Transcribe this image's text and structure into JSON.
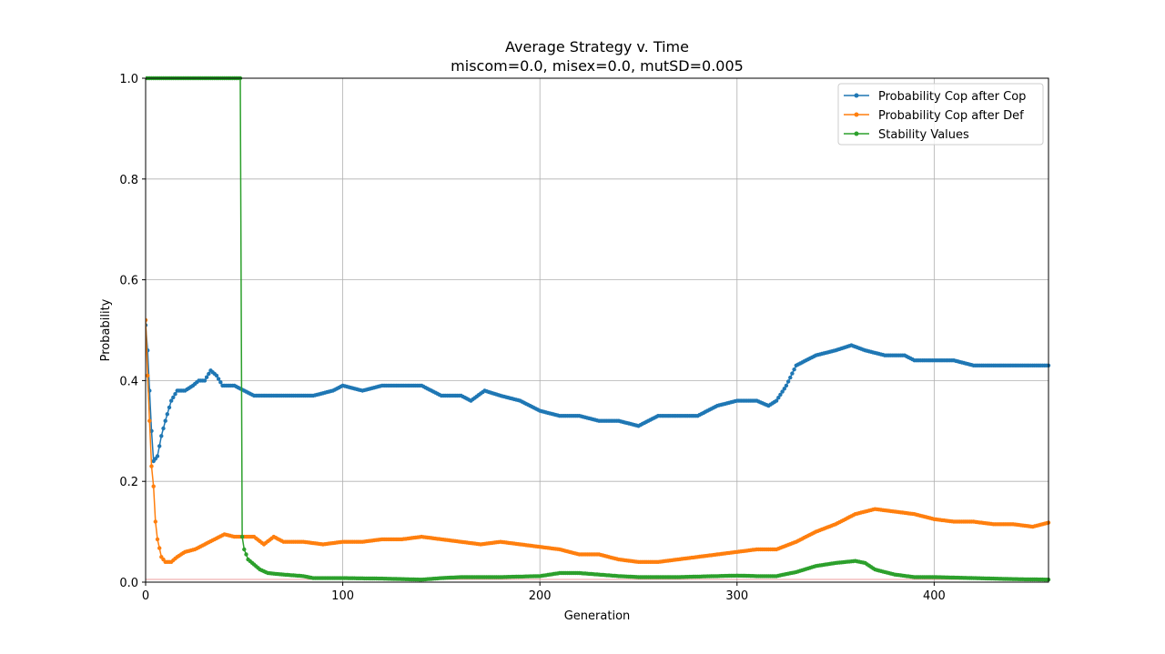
{
  "chart_data": {
    "type": "line",
    "title": "Average Strategy v. Time",
    "subtitle": "miscom=0.0, misex=0.0, mutSD=0.005",
    "xlabel": "Generation",
    "ylabel": "Probability",
    "xlim": [
      0,
      458
    ],
    "ylim": [
      0.0,
      1.0
    ],
    "xticks": [
      0,
      100,
      200,
      300,
      400
    ],
    "yticks": [
      0.0,
      0.2,
      0.4,
      0.6,
      0.8,
      1.0
    ],
    "grid": true,
    "legend_position": "top-right",
    "series": [
      {
        "name": "Probability Cop after Cop",
        "color": "#1f77b4",
        "anchors": [
          [
            0,
            0.51
          ],
          [
            1,
            0.46
          ],
          [
            3,
            0.3
          ],
          [
            4,
            0.24
          ],
          [
            6,
            0.25
          ],
          [
            8,
            0.29
          ],
          [
            10,
            0.32
          ],
          [
            13,
            0.36
          ],
          [
            16,
            0.38
          ],
          [
            20,
            0.38
          ],
          [
            24,
            0.39
          ],
          [
            27,
            0.4
          ],
          [
            30,
            0.4
          ],
          [
            33,
            0.42
          ],
          [
            36,
            0.41
          ],
          [
            39,
            0.39
          ],
          [
            45,
            0.39
          ],
          [
            50,
            0.38
          ],
          [
            55,
            0.37
          ],
          [
            65,
            0.37
          ],
          [
            75,
            0.37
          ],
          [
            85,
            0.37
          ],
          [
            95,
            0.38
          ],
          [
            100,
            0.39
          ],
          [
            110,
            0.38
          ],
          [
            120,
            0.39
          ],
          [
            130,
            0.39
          ],
          [
            140,
            0.39
          ],
          [
            150,
            0.37
          ],
          [
            160,
            0.37
          ],
          [
            165,
            0.36
          ],
          [
            172,
            0.38
          ],
          [
            180,
            0.37
          ],
          [
            190,
            0.36
          ],
          [
            200,
            0.34
          ],
          [
            210,
            0.33
          ],
          [
            220,
            0.33
          ],
          [
            230,
            0.32
          ],
          [
            240,
            0.32
          ],
          [
            250,
            0.31
          ],
          [
            255,
            0.32
          ],
          [
            260,
            0.33
          ],
          [
            270,
            0.33
          ],
          [
            280,
            0.33
          ],
          [
            290,
            0.35
          ],
          [
            300,
            0.36
          ],
          [
            310,
            0.36
          ],
          [
            316,
            0.35
          ],
          [
            320,
            0.36
          ],
          [
            325,
            0.39
          ],
          [
            330,
            0.43
          ],
          [
            340,
            0.45
          ],
          [
            350,
            0.46
          ],
          [
            358,
            0.47
          ],
          [
            365,
            0.46
          ],
          [
            375,
            0.45
          ],
          [
            385,
            0.45
          ],
          [
            390,
            0.44
          ],
          [
            400,
            0.44
          ],
          [
            410,
            0.44
          ],
          [
            420,
            0.43
          ],
          [
            430,
            0.43
          ],
          [
            440,
            0.43
          ],
          [
            450,
            0.43
          ],
          [
            458,
            0.43
          ]
        ]
      },
      {
        "name": "Probability Cop after Def",
        "color": "#ff7f0e",
        "anchors": [
          [
            0,
            0.52
          ],
          [
            1,
            0.41
          ],
          [
            2,
            0.32
          ],
          [
            3,
            0.23
          ],
          [
            4,
            0.19
          ],
          [
            5,
            0.12
          ],
          [
            6,
            0.085
          ],
          [
            8,
            0.05
          ],
          [
            10,
            0.04
          ],
          [
            13,
            0.04
          ],
          [
            16,
            0.05
          ],
          [
            20,
            0.06
          ],
          [
            25,
            0.065
          ],
          [
            30,
            0.075
          ],
          [
            35,
            0.085
          ],
          [
            40,
            0.095
          ],
          [
            45,
            0.09
          ],
          [
            50,
            0.09
          ],
          [
            55,
            0.09
          ],
          [
            60,
            0.075
          ],
          [
            65,
            0.09
          ],
          [
            70,
            0.08
          ],
          [
            80,
            0.08
          ],
          [
            90,
            0.075
          ],
          [
            100,
            0.08
          ],
          [
            110,
            0.08
          ],
          [
            120,
            0.085
          ],
          [
            130,
            0.085
          ],
          [
            140,
            0.09
          ],
          [
            150,
            0.085
          ],
          [
            160,
            0.08
          ],
          [
            170,
            0.075
          ],
          [
            180,
            0.08
          ],
          [
            190,
            0.075
          ],
          [
            200,
            0.07
          ],
          [
            210,
            0.065
          ],
          [
            220,
            0.055
          ],
          [
            230,
            0.055
          ],
          [
            240,
            0.045
          ],
          [
            250,
            0.04
          ],
          [
            260,
            0.04
          ],
          [
            270,
            0.045
          ],
          [
            280,
            0.05
          ],
          [
            290,
            0.055
          ],
          [
            300,
            0.06
          ],
          [
            310,
            0.065
          ],
          [
            320,
            0.065
          ],
          [
            330,
            0.08
          ],
          [
            340,
            0.1
          ],
          [
            350,
            0.115
          ],
          [
            360,
            0.135
          ],
          [
            370,
            0.145
          ],
          [
            380,
            0.14
          ],
          [
            390,
            0.135
          ],
          [
            400,
            0.125
          ],
          [
            410,
            0.12
          ],
          [
            420,
            0.12
          ],
          [
            430,
            0.115
          ],
          [
            440,
            0.115
          ],
          [
            450,
            0.11
          ],
          [
            458,
            0.118
          ]
        ]
      },
      {
        "name": "Stability Values",
        "color": "#2ca02c",
        "anchors": [
          [
            0,
            1.0
          ],
          [
            48,
            1.0
          ],
          [
            49,
            0.09
          ],
          [
            50,
            0.065
          ],
          [
            52,
            0.045
          ],
          [
            55,
            0.035
          ],
          [
            58,
            0.025
          ],
          [
            62,
            0.018
          ],
          [
            70,
            0.015
          ],
          [
            80,
            0.012
          ],
          [
            85,
            0.008
          ],
          [
            100,
            0.008
          ],
          [
            120,
            0.007
          ],
          [
            140,
            0.005
          ],
          [
            150,
            0.008
          ],
          [
            160,
            0.01
          ],
          [
            180,
            0.01
          ],
          [
            200,
            0.012
          ],
          [
            210,
            0.018
          ],
          [
            220,
            0.018
          ],
          [
            230,
            0.015
          ],
          [
            240,
            0.012
          ],
          [
            250,
            0.01
          ],
          [
            270,
            0.01
          ],
          [
            290,
            0.012
          ],
          [
            300,
            0.013
          ],
          [
            310,
            0.012
          ],
          [
            320,
            0.012
          ],
          [
            330,
            0.02
          ],
          [
            340,
            0.032
          ],
          [
            350,
            0.038
          ],
          [
            360,
            0.042
          ],
          [
            365,
            0.038
          ],
          [
            370,
            0.025
          ],
          [
            380,
            0.015
          ],
          [
            390,
            0.01
          ],
          [
            400,
            0.01
          ],
          [
            420,
            0.008
          ],
          [
            440,
            0.006
          ],
          [
            458,
            0.005
          ]
        ]
      }
    ]
  }
}
